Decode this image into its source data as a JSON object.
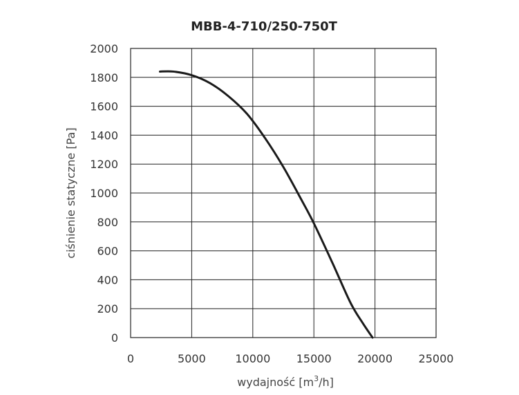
{
  "chart_data": {
    "type": "line",
    "title": "MBB-4-710/250-750T",
    "xlabel_main": "wydajność [m",
    "xlabel_sup": "3",
    "xlabel_end": "/h]",
    "ylabel": "ciśnienie statyczne [Pa]",
    "xlim": [
      0,
      25000
    ],
    "ylim": [
      0,
      2000
    ],
    "x_ticks": [
      "0",
      "5000",
      "10000",
      "15000",
      "20000",
      "25000"
    ],
    "y_ticks": [
      "0",
      "200",
      "400",
      "600",
      "800",
      "1000",
      "1200",
      "1400",
      "1600",
      "1800",
      "2000"
    ],
    "grid": true,
    "series": [
      {
        "x": [
          2400,
          3500,
          5000,
          6500,
          8000,
          9500,
          11000,
          12500,
          14000,
          15000,
          16500,
          18000,
          19000,
          19800
        ],
        "y": [
          1840,
          1840,
          1815,
          1760,
          1670,
          1550,
          1380,
          1180,
          950,
          790,
          520,
          240,
          100,
          0
        ]
      }
    ]
  }
}
